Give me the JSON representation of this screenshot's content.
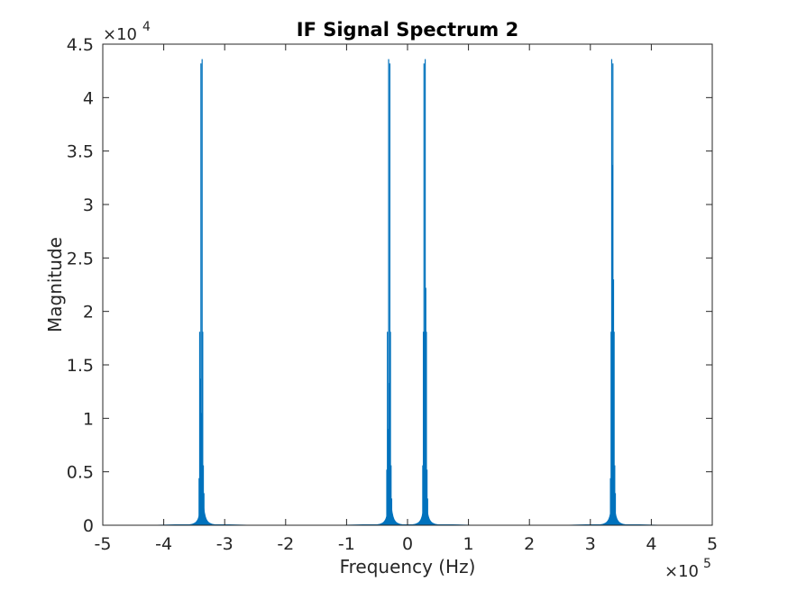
{
  "chart_data": {
    "type": "bar",
    "title": "IF Signal Spectrum 2",
    "xlabel": "Frequency (Hz)",
    "ylabel": "Magnitude",
    "xlim": [
      -500000,
      500000
    ],
    "ylim": [
      0,
      45000
    ],
    "x_multiplier_label": "×10",
    "x_multiplier_exponent": "5",
    "y_multiplier_label": "×10",
    "y_multiplier_exponent": "4",
    "x_tick_labels": [
      "-5",
      "-4",
      "-3",
      "-2",
      "-1",
      "0",
      "1",
      "2",
      "3",
      "4",
      "5"
    ],
    "x_ticks": [
      -500000,
      -400000,
      -300000,
      -200000,
      -100000,
      0,
      100000,
      200000,
      300000,
      400000,
      500000
    ],
    "y_tick_labels": [
      "0",
      "0.5",
      "1",
      "1.5",
      "2",
      "2.5",
      "3",
      "3.5",
      "4",
      "4.5"
    ],
    "y_ticks": [
      0,
      5000,
      10000,
      15000,
      20000,
      25000,
      30000,
      35000,
      40000,
      45000
    ],
    "grid": false,
    "color": "#0072BD",
    "peak_clusters": [
      {
        "center": -337000,
        "peaks": [
          {
            "x": -342000,
            "y": 4400
          },
          {
            "x": -341000,
            "y": 18100
          },
          {
            "x": -340000,
            "y": 13700
          },
          {
            "x": -339000,
            "y": 43200
          },
          {
            "x": -338000,
            "y": 10500
          },
          {
            "x": -337000,
            "y": 43600
          },
          {
            "x": -336000,
            "y": 18100
          },
          {
            "x": -335000,
            "y": 5600
          },
          {
            "x": -334000,
            "y": 3000
          }
        ]
      },
      {
        "center": -29000,
        "peaks": [
          {
            "x": -34000,
            "y": 5200
          },
          {
            "x": -33000,
            "y": 18100
          },
          {
            "x": -32000,
            "y": 9000
          },
          {
            "x": -31000,
            "y": 43600
          },
          {
            "x": -30000,
            "y": 13300
          },
          {
            "x": -29000,
            "y": 43200
          },
          {
            "x": -28000,
            "y": 18100
          },
          {
            "x": -27000,
            "y": 5600
          },
          {
            "x": -26000,
            "y": 2500
          }
        ]
      },
      {
        "center": 29000,
        "peaks": [
          {
            "x": 25000,
            "y": 5600
          },
          {
            "x": 26000,
            "y": 18100
          },
          {
            "x": 27000,
            "y": 43200
          },
          {
            "x": 28000,
            "y": 18100
          },
          {
            "x": 29000,
            "y": 43600
          },
          {
            "x": 30000,
            "y": 22200
          },
          {
            "x": 31000,
            "y": 18100
          },
          {
            "x": 32000,
            "y": 5200
          },
          {
            "x": 33000,
            "y": 2500
          }
        ]
      },
      {
        "center": 337000,
        "peaks": [
          {
            "x": 333000,
            "y": 4400
          },
          {
            "x": 334000,
            "y": 18100
          },
          {
            "x": 335000,
            "y": 43600
          },
          {
            "x": 336000,
            "y": 33700
          },
          {
            "x": 337000,
            "y": 43200
          },
          {
            "x": 338000,
            "y": 23000
          },
          {
            "x": 339000,
            "y": 18100
          },
          {
            "x": 340000,
            "y": 5600
          },
          {
            "x": 341000,
            "y": 3000
          }
        ]
      }
    ]
  }
}
